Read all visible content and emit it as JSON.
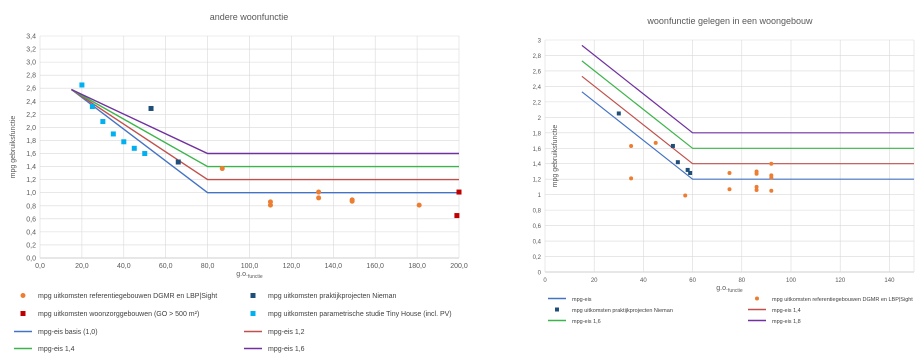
{
  "chart_data": [
    {
      "type": "scatter",
      "title": "andere woonfunctie",
      "xlabel": "g.o.",
      "xlabel_sub": "functie",
      "ylabel": "mpg gebruiksfunctie",
      "xlim": [
        0,
        200
      ],
      "ylim": [
        0,
        3.4
      ],
      "xticks": [
        "0,0",
        "20,0",
        "40,0",
        "60,0",
        "80,0",
        "100,0",
        "120,0",
        "140,0",
        "160,0",
        "180,0",
        "200,0"
      ],
      "yticks": [
        "0,0",
        "0,2",
        "0,4",
        "0,6",
        "0,8",
        "1,0",
        "1,2",
        "1,4",
        "1,6",
        "1,8",
        "2,0",
        "2,2",
        "2,4",
        "2,6",
        "2,8",
        "3,0",
        "3,2",
        "3,4"
      ],
      "grid": true,
      "legend_position": "bottom",
      "scatter_series": [
        {
          "name": "mpg uitkomsten referentiegebouwen DGMR en LBP|Sight",
          "color": "#ED7D31",
          "marker": "circle",
          "points": [
            [
              87,
              1.37
            ],
            [
              110,
              0.86
            ],
            [
              110,
              0.81
            ],
            [
              133,
              1.01
            ],
            [
              133,
              0.92
            ],
            [
              149,
              0.89
            ],
            [
              149,
              0.87
            ],
            [
              181,
              0.81
            ]
          ]
        },
        {
          "name": "mpg uitkomsten praktijkprojecten Nieman",
          "color": "#1F4E79",
          "marker": "square",
          "points": [
            [
              53,
              2.29
            ],
            [
              66,
              1.47
            ]
          ]
        },
        {
          "name": "mpg uitkomsten woonzorggebouwen (GO > 500 m²)",
          "color": "#C00000",
          "marker": "square",
          "points": [
            [
              200,
              1.01
            ],
            [
              199,
              0.65
            ]
          ]
        },
        {
          "name": "mpg uitkomsten parametrische studie Tiny House (incl. PV)",
          "color": "#00B0F0",
          "marker": "square",
          "points": [
            [
              20,
              2.65
            ],
            [
              25,
              2.32
            ],
            [
              30,
              2.09
            ],
            [
              35,
              1.9
            ],
            [
              40,
              1.78
            ],
            [
              45,
              1.68
            ],
            [
              50,
              1.6
            ]
          ]
        }
      ],
      "line_series": [
        {
          "name": "mpg-eis basis (1,0)",
          "color": "#4472C4",
          "points": [
            [
              15,
              2.58
            ],
            [
              80,
              1.0
            ],
            [
              200,
              1.0
            ]
          ]
        },
        {
          "name": "mpg-eis 1,2",
          "color": "#C0504D",
          "points": [
            [
              15,
              2.58
            ],
            [
              80,
              1.2
            ],
            [
              200,
              1.2
            ]
          ]
        },
        {
          "name": "mpg-eis 1,4",
          "color": "#3CB44B",
          "points": [
            [
              15,
              2.58
            ],
            [
              80,
              1.4
            ],
            [
              200,
              1.4
            ]
          ]
        },
        {
          "name": "mpg-eis 1,6",
          "color": "#7030A0",
          "points": [
            [
              15,
              2.58
            ],
            [
              80,
              1.6
            ],
            [
              200,
              1.6
            ]
          ]
        }
      ],
      "legend": [
        {
          "label": "mpg uitkomsten referentiegebouwen DGMR en LBP|Sight",
          "series": "scatter",
          "index": 0
        },
        {
          "label": "mpg uitkomsten praktijkprojecten Nieman",
          "series": "scatter",
          "index": 1
        },
        {
          "label": "mpg uitkomsten woonzorggebouwen (GO > 500 m²)",
          "series": "scatter",
          "index": 2
        },
        {
          "label": "mpg uitkomsten parametrische studie Tiny House (incl. PV)",
          "series": "scatter",
          "index": 3
        },
        {
          "label": "mpg-eis basis (1,0)",
          "series": "line",
          "index": 0
        },
        {
          "label": "mpg-eis 1,2",
          "series": "line",
          "index": 1
        },
        {
          "label": "mpg-eis 1,4",
          "series": "line",
          "index": 2
        },
        {
          "label": "mpg-eis 1,6",
          "series": "line",
          "index": 3
        }
      ]
    },
    {
      "type": "scatter",
      "title": "woonfunctie gelegen in een woongebouw",
      "xlabel": "g.o.",
      "xlabel_sub": "functie",
      "ylabel": "mpg gebruiksfunctie",
      "xlim": [
        0,
        150
      ],
      "ylim": [
        0,
        3
      ],
      "xticks": [
        "0",
        "20",
        "40",
        "60",
        "80",
        "100",
        "120",
        "140"
      ],
      "yticks": [
        "0",
        "0,2",
        "0,4",
        "0,6",
        "0,8",
        "1",
        "1,2",
        "1,4",
        "1,6",
        "1,8",
        "2",
        "2,2",
        "2,4",
        "2,6",
        "2,8",
        "3"
      ],
      "grid": true,
      "legend_position": "bottom",
      "scatter_series": [
        {
          "name": "mpg uitkomsten referentiegebouwen DGMR en LBP|Sight",
          "color": "#ED7D31",
          "marker": "circle",
          "points": [
            [
              35,
              1.63
            ],
            [
              35,
              1.21
            ],
            [
              45,
              1.67
            ],
            [
              57,
              0.99
            ],
            [
              75,
              1.28
            ],
            [
              75,
              1.07
            ],
            [
              86,
              1.3
            ],
            [
              86,
              1.27
            ],
            [
              86,
              1.1
            ],
            [
              86,
              1.06
            ],
            [
              92,
              1.4
            ],
            [
              92,
              1.25
            ],
            [
              92,
              1.22
            ],
            [
              92,
              1.05
            ]
          ]
        },
        {
          "name": "mpg uitkomsten praktijkprojecten Nieman",
          "color": "#1F4E79",
          "marker": "square",
          "points": [
            [
              30,
              2.05
            ],
            [
              52,
              1.63
            ],
            [
              54,
              1.42
            ],
            [
              58,
              1.32
            ],
            [
              59,
              1.28
            ]
          ]
        }
      ],
      "line_series": [
        {
          "name": "mpg-eis",
          "color": "#4472C4",
          "points": [
            [
              15,
              2.33
            ],
            [
              60,
              1.2
            ],
            [
              150,
              1.2
            ]
          ]
        },
        {
          "name": "mpg-eis 1,4",
          "color": "#C0504D",
          "points": [
            [
              15,
              2.53
            ],
            [
              60,
              1.4
            ],
            [
              150,
              1.4
            ]
          ]
        },
        {
          "name": "mpg-eis 1,6",
          "color": "#3CB44B",
          "points": [
            [
              15,
              2.73
            ],
            [
              60,
              1.6
            ],
            [
              150,
              1.6
            ]
          ]
        },
        {
          "name": "mpg-eis 1,8",
          "color": "#7030A0",
          "points": [
            [
              15,
              2.93
            ],
            [
              60,
              1.8
            ],
            [
              150,
              1.8
            ]
          ]
        }
      ],
      "legend": [
        {
          "label": "mpg-eis",
          "series": "line",
          "index": 0
        },
        {
          "label": "mpg uitkomsten referentiegebouwen DGMR en LBP|Sight",
          "series": "scatter",
          "index": 0
        },
        {
          "label": "mpg uitkomsten praktijkprojecten Nieman",
          "series": "scatter",
          "index": 1
        },
        {
          "label": "mpg-eis 1,4",
          "series": "line",
          "index": 1
        },
        {
          "label": "mpg-eis 1,6",
          "series": "line",
          "index": 2
        },
        {
          "label": "mpg-eis 1,8",
          "series": "line",
          "index": 3
        }
      ]
    }
  ]
}
